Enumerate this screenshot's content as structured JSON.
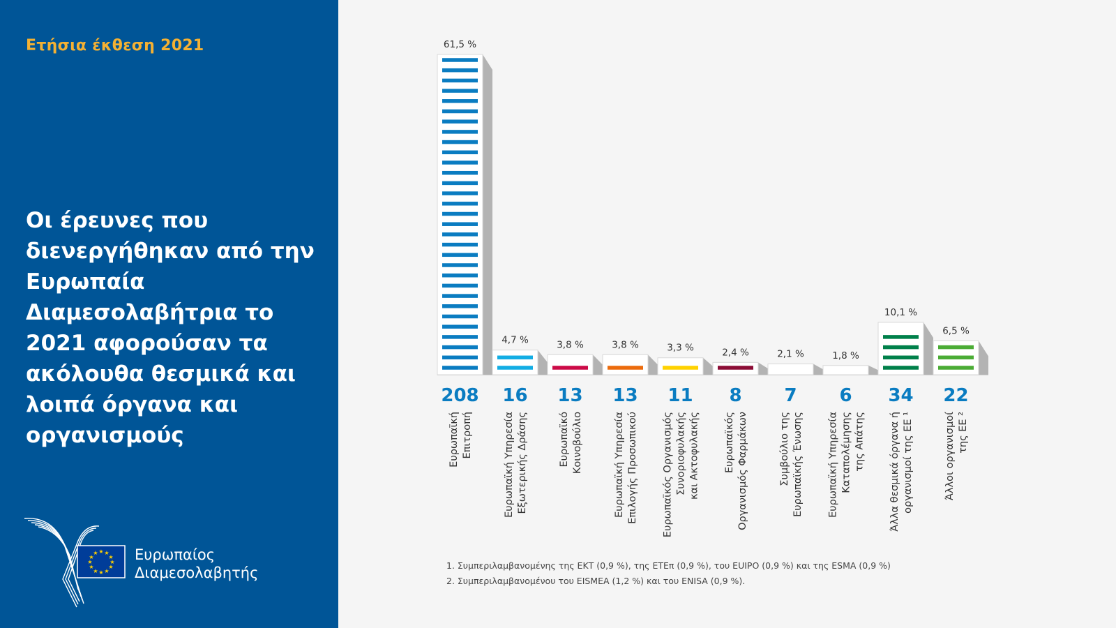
{
  "sidebar": {
    "report_label": "Ετήσια έκθεση 2021",
    "headline": "Οι έρευνες που διενεργήθηκαν από την Ευρωπαία Διαμεσολαβήτρια το 2021 αφορούσαν τα ακόλουθα θεσμικά και λοιπά όργανα και οργανισμούς",
    "logo_line1": "Ευρωπαίος",
    "logo_line2": "Διαμεσολαβητής"
  },
  "colors": {
    "sidebar_bg": "#005597",
    "accent": "#f4b133",
    "count_blue": "#0a7cc1",
    "bar_side": "#b3b3b3"
  },
  "chart_data": {
    "type": "bar",
    "title": "Οι έρευνες που διενεργήθηκαν από την Ευρωπαία Διαμεσολαβήτρια το 2021 αφορούσαν τα ακόλουθα θεσμικά και λοιπά όργανα και οργανισμούς",
    "xlabel": "",
    "ylabel": "",
    "ylim": [
      0,
      208
    ],
    "grid": false,
    "legend": "none",
    "categories": [
      [
        "Ευρωπαϊκή",
        "Επιτροπή"
      ],
      [
        "Ευρωπαϊκή Υπηρεσία",
        "Εξωτερικής Δράσης"
      ],
      [
        "Ευρωπαϊκό",
        "Κοινοβούλιο"
      ],
      [
        "Ευρωπαϊκή Υπηρεσία",
        "Επιλογής Προσωπικού"
      ],
      [
        "Ευρωπαϊκός Οργανισμός",
        "Συνοριοφυλακής",
        "και Ακτοφυλακής"
      ],
      [
        "Ευρωπαϊκός",
        "Οργανισμός Φαρμάκων"
      ],
      [
        "Συμβούλιο της",
        "Ευρωπαϊκής Ένωσης"
      ],
      [
        "Ευρωπαϊκή Υπηρεσία",
        "Καταπολέμησης",
        "της Απάτης"
      ],
      [
        "Άλλα θεσμικά όργανα ή",
        "οργανισμοί της ΕΕ ¹"
      ],
      [
        "Άλλοι οργανισμοί",
        "της ΕΕ ²"
      ]
    ],
    "values": [
      208,
      16,
      13,
      13,
      11,
      8,
      7,
      6,
      34,
      22
    ],
    "percent_labels": [
      "61,5 %",
      "4,7 %",
      "3,8 %",
      "3,8 %",
      "3,3 %",
      "2,4 %",
      "2,1 %",
      "1,8 %",
      "10,1 %",
      "6,5 %"
    ],
    "bar_colors": [
      "#0a7cc1",
      "#12ade4",
      "#cc0a47",
      "#ec6b0c",
      "#ffd200",
      "#8b0c35",
      "#ee86b4",
      "#005597",
      "#00804a",
      "#4bac35"
    ],
    "footnotes": [
      "1. Συμπεριλαμβανομένης της ΕΚΤ (0,9 %), της ΕΤΕπ (0,9 %), του EUIPO  (0,9 %) και της ESMA (0,9 %)",
      "2. Συμπεριλαμβανομένου του EISMEA (1,2 %) και του ENISA (0,9 %)."
    ]
  }
}
